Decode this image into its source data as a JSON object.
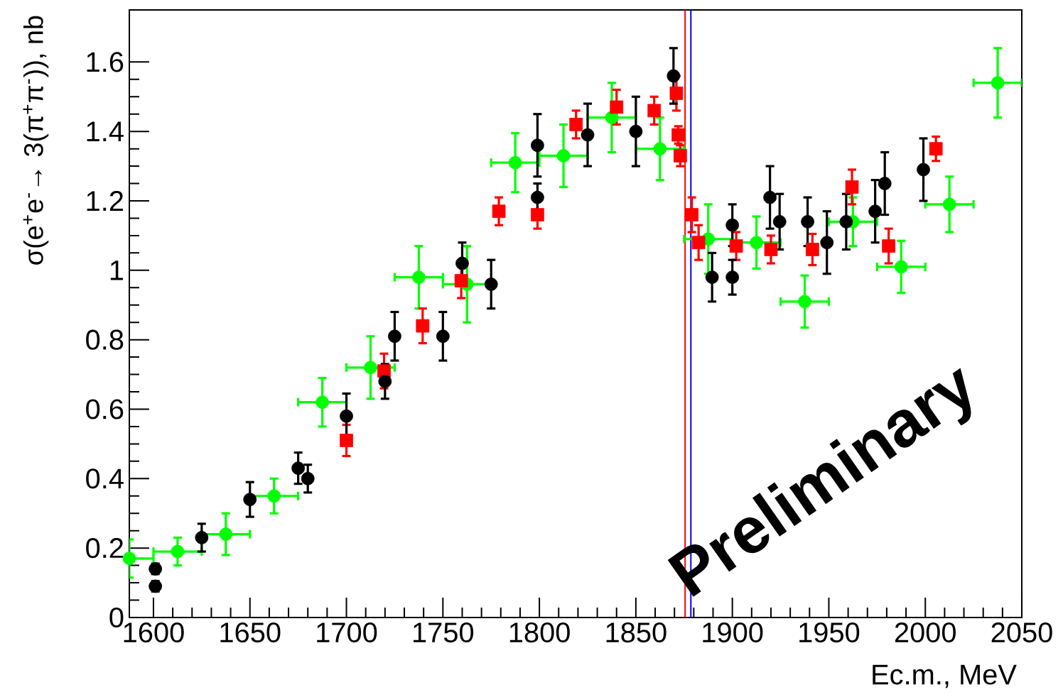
{
  "chart_data": {
    "type": "scatter",
    "xlabel": "Ec.m., MeV",
    "ylabel": "σ(e$^{+}$e$^{-}$→ 3(π$^{+}$π$^{-}$)), nb",
    "annotations": [
      "Preliminary"
    ],
    "xlim": [
      1587.5,
      2050
    ],
    "ylim": [
      0,
      1.75
    ],
    "xticks": [
      1600,
      1650,
      1700,
      1750,
      1800,
      1850,
      1900,
      1950,
      2000,
      2050
    ],
    "yticks": [
      0,
      0.2,
      0.4,
      0.6,
      0.8,
      1,
      1.2,
      1.4,
      1.6
    ],
    "ref_lines": [
      {
        "axis": "x",
        "value": 1875.5,
        "color": "#ff0000",
        "line_style": "solid"
      },
      {
        "axis": "x",
        "value": 1878.5,
        "color": "#0000ff",
        "line_style": "solid"
      }
    ],
    "series": [
      {
        "color": "#000000",
        "marker": "circle",
        "x": [
          1601,
          1601,
          1625,
          1650,
          1675,
          1680,
          1700,
          1720,
          1725,
          1750,
          1760,
          1775,
          1799,
          1799,
          1825,
          1850,
          1869.5,
          1889.5,
          1900,
          1900,
          1919.5,
          1924.5,
          1939,
          1949,
          1959,
          1974,
          1979,
          1999
        ],
        "values": [
          0.14,
          0.09,
          0.23,
          0.34,
          0.43,
          0.4,
          0.58,
          0.68,
          0.81,
          0.81,
          1.02,
          0.96,
          1.36,
          1.21,
          1.39,
          1.4,
          1.56,
          0.98,
          0.98,
          1.13,
          1.21,
          1.14,
          1.14,
          1.08,
          1.14,
          1.17,
          1.25,
          1.29
        ],
        "errors": [
          0.015,
          0.015,
          0.04,
          0.05,
          0.045,
          0.04,
          0.065,
          0.05,
          0.07,
          0.07,
          0.06,
          0.07,
          0.09,
          0.04,
          0.09,
          0.1,
          0.08,
          0.07,
          0.05,
          0.06,
          0.09,
          0.08,
          0.07,
          0.09,
          0.08,
          0.09,
          0.09,
          0.09
        ]
      },
      {
        "color": "#ff0000",
        "marker": "square",
        "x": [
          1700,
          1719.5,
          1739.5,
          1759.5,
          1779,
          1799,
          1819,
          1840,
          1859.5,
          1871,
          1872,
          1873,
          1879,
          1882.5,
          1902,
          1920,
          1941.5,
          1962,
          1981,
          2005.5
        ],
        "values": [
          0.51,
          0.71,
          0.84,
          0.97,
          1.17,
          1.16,
          1.42,
          1.47,
          1.46,
          1.51,
          1.39,
          1.33,
          1.16,
          1.08,
          1.07,
          1.06,
          1.06,
          1.24,
          1.07,
          1.35
        ],
        "errors": [
          0.045,
          0.05,
          0.05,
          0.05,
          0.04,
          0.04,
          0.04,
          0.05,
          0.04,
          0.05,
          0.025,
          0.03,
          0.05,
          0.05,
          0.04,
          0.04,
          0.045,
          0.05,
          0.05,
          0.035
        ]
      },
      {
        "color": "#00ff00",
        "marker": "circle",
        "x": [
          1587.5,
          1612.5,
          1637.5,
          1662.5,
          1687.5,
          1712.5,
          1737.5,
          1762.5,
          1787.5,
          1812.5,
          1837.5,
          1862.5,
          1887.5,
          1912.5,
          1937.5,
          1962.5,
          1987.5,
          2012.5,
          2037.5
        ],
        "values": [
          0.17,
          0.19,
          0.24,
          0.35,
          0.62,
          0.72,
          0.98,
          0.96,
          1.31,
          1.33,
          1.44,
          1.35,
          1.09,
          1.08,
          0.91,
          1.14,
          1.01,
          1.19,
          1.54
        ],
        "errors": [
          0.055,
          0.04,
          0.06,
          0.05,
          0.07,
          0.09,
          0.09,
          0.11,
          0.085,
          0.09,
          0.1,
          0.09,
          0.1,
          0.075,
          0.075,
          0.07,
          0.075,
          0.08,
          0.1
        ],
        "xerrors": [
          [
            1587.5,
            1600
          ],
          12.5,
          12.5,
          12.5,
          12.5,
          12.5,
          12.5,
          12.5,
          12.5,
          12.5,
          12.5,
          12.5,
          12.5,
          12.5,
          12.5,
          12.5,
          12.5,
          12.5,
          12.5
        ]
      }
    ]
  }
}
